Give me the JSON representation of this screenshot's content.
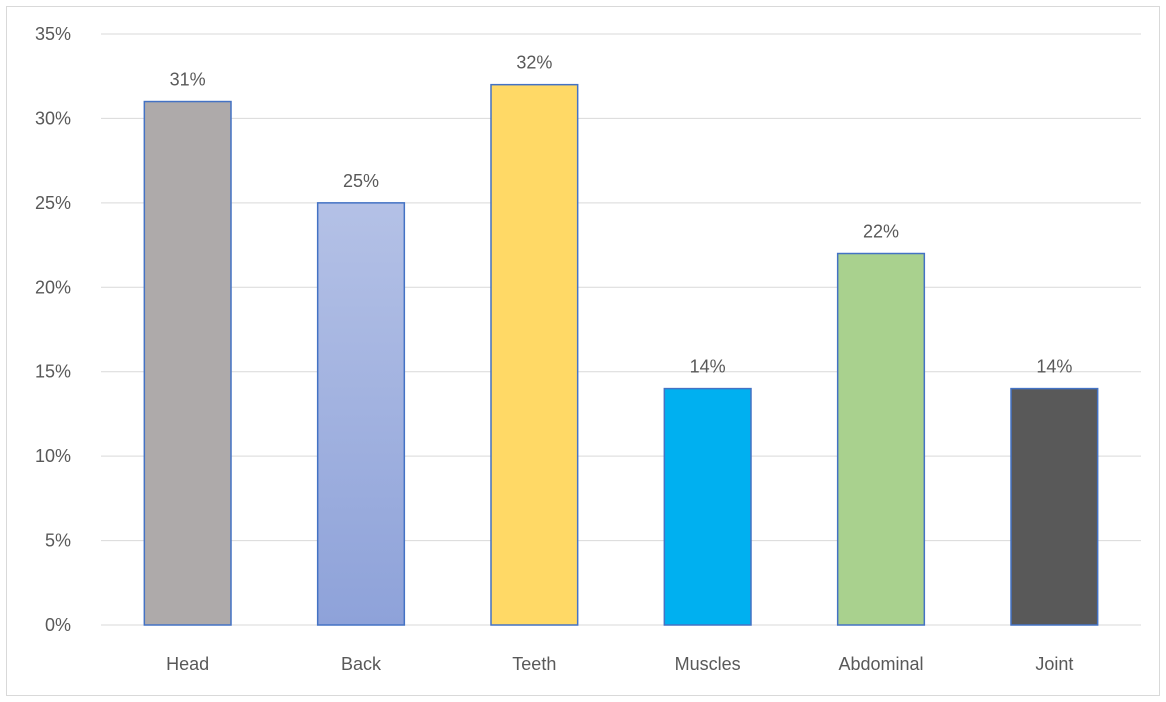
{
  "chart_data": {
    "type": "bar",
    "title": "",
    "xlabel": "",
    "ylabel": "",
    "categories": [
      "Head",
      "Back",
      "Teeth",
      "Muscles",
      "Abdominal",
      "Joint"
    ],
    "values": [
      31,
      25,
      32,
      14,
      22,
      14
    ],
    "value_format": "percent",
    "ylim": [
      0,
      35
    ],
    "yticks": [
      0,
      5,
      10,
      15,
      20,
      25,
      30,
      35
    ],
    "ytick_labels": [
      "0%",
      "5%",
      "10%",
      "15%",
      "20%",
      "25%",
      "30%",
      "35%"
    ],
    "data_labels": [
      "31%",
      "25%",
      "32%",
      "14%",
      "22%",
      "14%"
    ],
    "grid": true,
    "legend": "none",
    "bar_colors": [
      "#aeaaaa",
      "gradient-blue",
      "#ffd966",
      "#00b0f0",
      "#a9d18e",
      "#595959"
    ],
    "bar_border_color": "#4472c4",
    "gradient_blue": [
      "#b4c1e6",
      "#8ea2d9"
    ],
    "grid_color": "#d9d9d9",
    "text_color": "#595959"
  }
}
